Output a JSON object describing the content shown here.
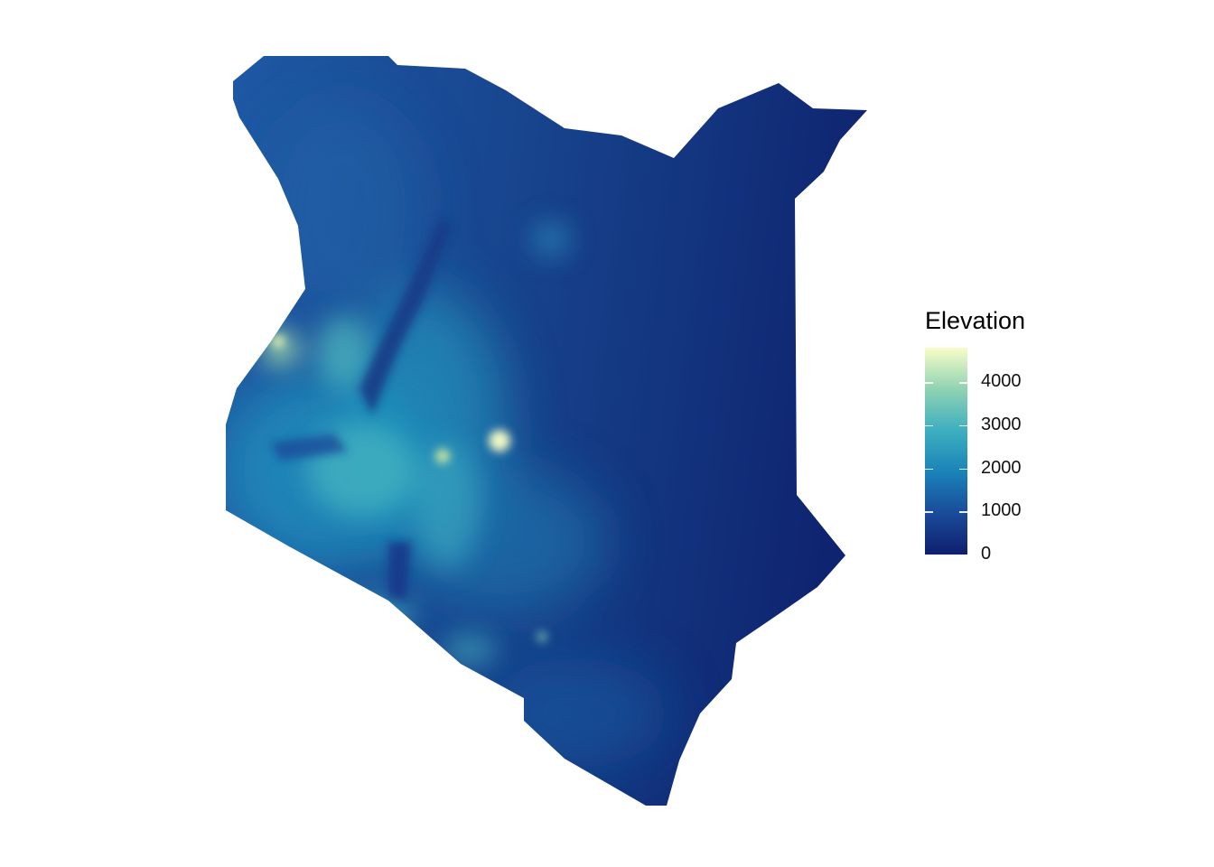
{
  "legend": {
    "title": "Elevation",
    "ticks": [
      {
        "label": "4000",
        "value": 4000
      },
      {
        "label": "3000",
        "value": 3000
      },
      {
        "label": "2000",
        "value": 2000
      },
      {
        "label": "1000",
        "value": 1000
      },
      {
        "label": "0",
        "value": 0
      }
    ],
    "range": [
      0,
      4800
    ],
    "colors": [
      "#0e1f6e",
      "#1a4b9a",
      "#1a83b8",
      "#3eafc0",
      "#8fd3b2",
      "#f8fdc9"
    ]
  }
}
